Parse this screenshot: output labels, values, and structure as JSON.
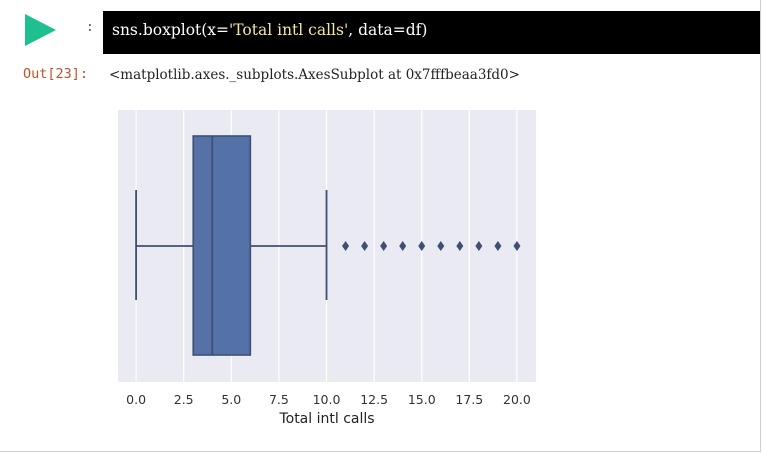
{
  "cell": {
    "input_code_prefix": "sns.boxplot(x=",
    "input_code_string": "'Total intl calls'",
    "input_code_suffix": ", data=df)",
    "prompt_marker": ":",
    "output_prompt": "Out[23]:",
    "output_text": "<matplotlib.axes._subplots.AxesSubplot at 0x7fffbeaa3fd0>"
  },
  "colors": {
    "run_button": "#1fbf8f",
    "box_fill": "#5572a8",
    "box_edge": "#3e4f73",
    "plot_bg": "#eaeaf2",
    "output_prompt": "#c5502a"
  },
  "chart_data": {
    "type": "box",
    "orientation": "horizontal",
    "xlabel": "Total intl calls",
    "ylabel": "",
    "xlim": [
      -0.95,
      21.0
    ],
    "xticks": [
      0.0,
      2.5,
      5.0,
      7.5,
      10.0,
      12.5,
      15.0,
      17.5,
      20.0
    ],
    "xtick_labels": [
      "0.0",
      "2.5",
      "5.0",
      "7.5",
      "10.0",
      "12.5",
      "15.0",
      "17.5",
      "20.0"
    ],
    "grid": true,
    "box": {
      "whisker_low": 0,
      "q1": 3,
      "median": 4,
      "q3": 6,
      "whisker_high": 10
    },
    "outliers": [
      11,
      12,
      13,
      14,
      15,
      16,
      17,
      18,
      19,
      20
    ]
  }
}
